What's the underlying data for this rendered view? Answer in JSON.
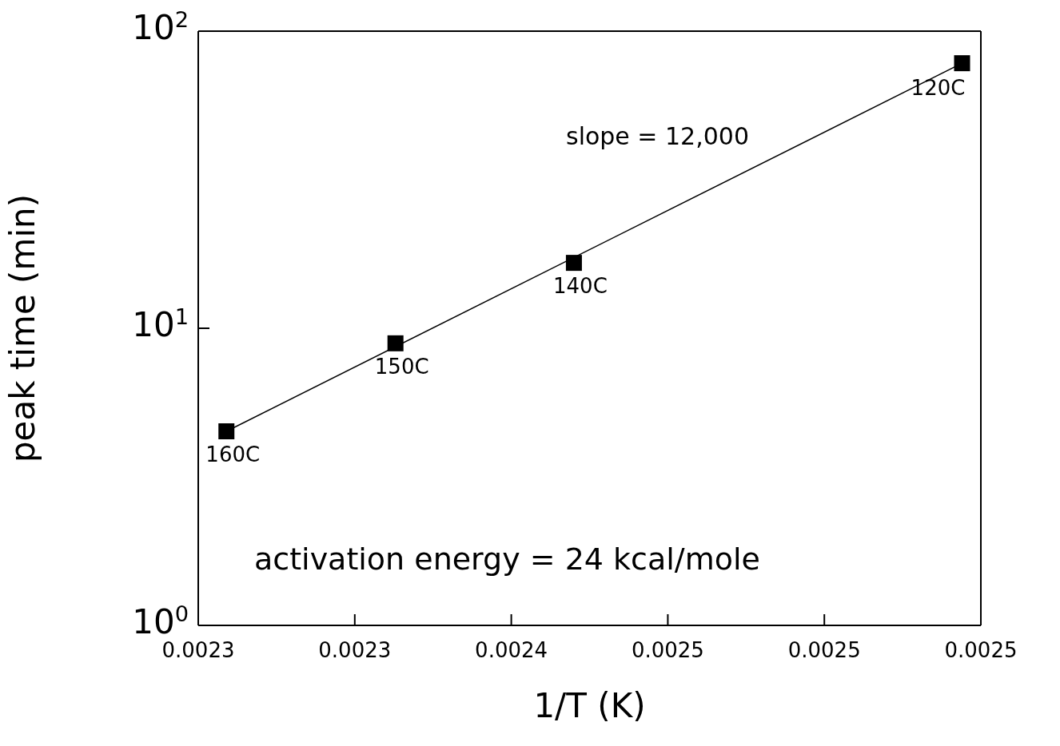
{
  "chart_data": {
    "type": "scatter",
    "xlabel": "1/T (K)",
    "ylabel": "peak time (min)",
    "xlim": [
      0.0023,
      0.00255
    ],
    "xticks": [
      {
        "value": 0.0023,
        "label": "0.0023"
      },
      {
        "value": 0.00235,
        "label": "0.0023"
      },
      {
        "value": 0.0024,
        "label": "0.0024"
      },
      {
        "value": 0.00245,
        "label": "0.0025"
      },
      {
        "value": 0.0025,
        "label": "0.0025"
      },
      {
        "value": 0.00255,
        "label": "0.0025"
      }
    ],
    "ylim": [
      1,
      100
    ],
    "yticks": [
      {
        "value": 1,
        "label": "10$^{0}$"
      },
      {
        "value": 10,
        "label": "10$^{1}$"
      },
      {
        "value": 100,
        "label": "10$^{2}$"
      }
    ],
    "log": "y",
    "marker": "square",
    "series": [
      {
        "color": "#000000",
        "x": [
          0.002309,
          0.002363,
          0.00242,
          0.002544
        ],
        "values": [
          4.5,
          8.9,
          16.6,
          78
        ]
      },
      {
        "type": "line",
        "color": "#000000",
        "x": [
          0.002309,
          0.002544
        ],
        "values": [
          4.5,
          78
        ],
        "marker": "none",
        "line_style": "solid"
      }
    ],
    "annotations": [
      "slope = 12,000",
      "activation energy = 24 kcal/mole",
      {
        "text": "160C",
        "x": 0.002309,
        "y": 4.5
      },
      {
        "text": "150C",
        "x": 0.002363,
        "y": 8.9
      },
      {
        "text": "140C",
        "x": 0.00242,
        "y": 16.6
      },
      {
        "text": "120C",
        "x": 0.002544,
        "y": 78
      }
    ]
  }
}
